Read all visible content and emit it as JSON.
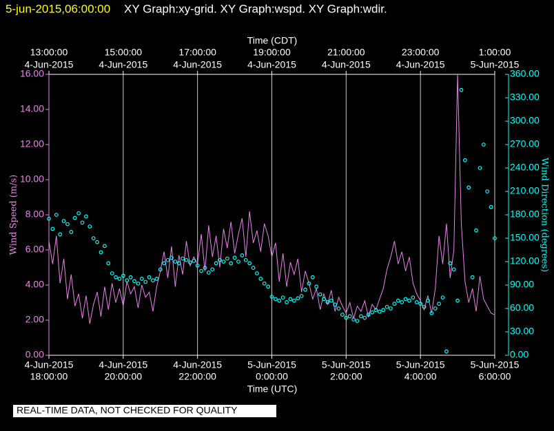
{
  "chart_data": {
    "type": "line-scatter",
    "timestamp": "5-jun-2015,06:00:00",
    "title": "XY Graph:xy-grid.  XY Graph:wspd.  XY Graph:wdir.",
    "x_label": "Time (UTC)",
    "x2_label": "Time (CDT)",
    "y_label": "Wind Speed (m/s)",
    "y2_label": "Wind Direction (degrees)",
    "note": "REAL-TIME DATA, NOT CHECKED FOR QUALITY",
    "grid": true,
    "xlim": [
      0,
      12
    ],
    "xticks": [
      {
        "value": 0,
        "label": "4-Jun-2015",
        "label2": "18:00:00"
      },
      {
        "value": 2,
        "label": "4-Jun-2015",
        "label2": "20:00:00"
      },
      {
        "value": 4,
        "label": "4-Jun-2015",
        "label2": "22:00:00"
      },
      {
        "value": 6,
        "label": "5-Jun-2015",
        "label2": "0:00:00"
      },
      {
        "value": 8,
        "label": "5-Jun-2015",
        "label2": "2:00:00"
      },
      {
        "value": 10,
        "label": "5-Jun-2015",
        "label2": "4:00:00"
      },
      {
        "value": 12,
        "label": "5-Jun-2015",
        "label2": "6:00:00"
      }
    ],
    "x2ticks": [
      {
        "value": 0,
        "label": "13:00:00",
        "label2": "4-Jun-2015"
      },
      {
        "value": 2,
        "label": "15:00:00",
        "label2": "4-Jun-2015"
      },
      {
        "value": 4,
        "label": "17:00:00",
        "label2": "4-Jun-2015"
      },
      {
        "value": 6,
        "label": "19:00:00",
        "label2": "4-Jun-2015"
      },
      {
        "value": 8,
        "label": "21:00:00",
        "label2": "4-Jun-2015"
      },
      {
        "value": 10,
        "label": "23:00:00",
        "label2": "4-Jun-2015"
      },
      {
        "value": 12,
        "label": "1:00:00",
        "label2": "5-Jun-2015"
      }
    ],
    "ylim": [
      0,
      16
    ],
    "yticks": [
      {
        "value": 0,
        "label": "0.00"
      },
      {
        "value": 2,
        "label": "2.00"
      },
      {
        "value": 4,
        "label": "4.00"
      },
      {
        "value": 6,
        "label": "6.00"
      },
      {
        "value": 8,
        "label": "8.00"
      },
      {
        "value": 10,
        "label": "10.00"
      },
      {
        "value": 12,
        "label": "12.00"
      },
      {
        "value": 14,
        "label": "14.00"
      },
      {
        "value": 16,
        "label": "16.00"
      }
    ],
    "y2lim": [
      0,
      360
    ],
    "y2ticks": [
      {
        "value": 0,
        "label": "0.00"
      },
      {
        "value": 30,
        "label": "30.00"
      },
      {
        "value": 60,
        "label": "60.00"
      },
      {
        "value": 90,
        "label": "90.00"
      },
      {
        "value": 120,
        "label": "120.00"
      },
      {
        "value": 150,
        "label": "150.00"
      },
      {
        "value": 180,
        "label": "180.00"
      },
      {
        "value": 210,
        "label": "210.00"
      },
      {
        "value": 240,
        "label": "240.00"
      },
      {
        "value": 270,
        "label": "270.00"
      },
      {
        "value": 300,
        "label": "300.00"
      },
      {
        "value": 330,
        "label": "330.00"
      },
      {
        "value": 360,
        "label": "360.00"
      }
    ],
    "x": [
      0,
      0.1,
      0.2,
      0.3,
      0.4,
      0.5,
      0.6,
      0.7,
      0.8,
      0.9,
      1,
      1.1,
      1.2,
      1.3,
      1.4,
      1.5,
      1.6,
      1.7,
      1.8,
      1.9,
      2,
      2.1,
      2.2,
      2.3,
      2.4,
      2.5,
      2.6,
      2.7,
      2.8,
      2.9,
      3,
      3.1,
      3.2,
      3.3,
      3.4,
      3.5,
      3.6,
      3.7,
      3.8,
      3.9,
      4,
      4.1,
      4.2,
      4.3,
      4.4,
      4.5,
      4.6,
      4.7,
      4.8,
      4.9,
      5,
      5.1,
      5.2,
      5.3,
      5.4,
      5.5,
      5.6,
      5.7,
      5.8,
      5.9,
      6,
      6.1,
      6.2,
      6.3,
      6.4,
      6.5,
      6.6,
      6.7,
      6.8,
      6.9,
      7,
      7.1,
      7.2,
      7.3,
      7.4,
      7.5,
      7.6,
      7.7,
      7.8,
      7.9,
      8,
      8.1,
      8.2,
      8.3,
      8.4,
      8.5,
      8.6,
      8.7,
      8.8,
      8.9,
      9,
      9.1,
      9.2,
      9.3,
      9.4,
      9.5,
      9.6,
      9.7,
      9.8,
      9.9,
      10,
      10.1,
      10.2,
      10.3,
      10.4,
      10.5,
      10.6,
      10.7,
      10.8,
      10.9,
      11,
      11.1,
      11.2,
      11.3,
      11.4,
      11.5,
      11.6,
      11.7,
      11.8,
      11.9,
      12
    ],
    "series": [
      {
        "name": "wspd",
        "kind": "line",
        "color": "#ee82ee",
        "values": [
          6.5,
          5.2,
          6.8,
          4.1,
          5.5,
          3.2,
          4.6,
          2.8,
          3.5,
          2.1,
          3.4,
          1.8,
          2.9,
          3.6,
          2.2,
          3.9,
          2.6,
          4.1,
          3.0,
          3.8,
          2.8,
          4.2,
          3.5,
          3.9,
          2.7,
          4.0,
          3.3,
          3.6,
          2.5,
          3.9,
          4.8,
          5.9,
          4.4,
          6.2,
          3.9,
          5.7,
          4.6,
          6.5,
          5.1,
          5.6,
          5.2,
          6.9,
          4.8,
          7.4,
          5.6,
          6.8,
          5.0,
          7.2,
          6.1,
          7.6,
          5.8,
          6.9,
          7.8,
          5.6,
          8.2,
          6.4,
          7.1,
          5.9,
          7.5,
          6.8,
          5.6,
          6.4,
          4.2,
          5.8,
          3.9,
          5.3,
          4.6,
          5.5,
          3.6,
          4.8,
          4.1,
          3.2,
          3.8,
          2.6,
          3.5,
          2.9,
          3.7,
          2.5,
          3.3,
          2.8,
          2.4,
          3.0,
          2.1,
          2.8,
          2.5,
          3.1,
          2.2,
          2.9,
          2.6,
          3.2,
          3.8,
          4.9,
          5.6,
          6.5,
          5.2,
          5.9,
          4.8,
          5.6,
          4.1,
          3.5,
          3.1,
          2.6,
          3.4,
          2.4,
          3.8,
          6.8,
          5.2,
          7.5,
          4.4,
          6.0,
          16.0,
          7.5,
          4.2,
          3.0,
          3.8,
          2.5,
          4.5,
          3.2,
          2.8,
          2.4,
          2.3
        ]
      },
      {
        "name": "wdir",
        "kind": "scatter",
        "axis": "y2",
        "color": "#00ffff",
        "values": [
          175,
          162,
          180,
          155,
          172,
          168,
          158,
          176,
          182,
          170,
          178,
          165,
          150,
          145,
          132,
          140,
          118,
          105,
          100,
          98,
          102,
          96,
          100,
          95,
          92,
          98,
          94,
          100,
          96,
          98,
          110,
          118,
          122,
          125,
          120,
          118,
          124,
          122,
          119,
          121,
          115,
          108,
          112,
          106,
          110,
          118,
          122,
          120,
          124,
          118,
          125,
          120,
          128,
          122,
          118,
          112,
          105,
          98,
          92,
          88,
          75,
          72,
          70,
          74,
          68,
          72,
          70,
          73,
          76,
          84,
          92,
          100,
          88,
          78,
          72,
          68,
          70,
          65,
          60,
          52,
          48,
          50,
          46,
          44,
          50,
          48,
          52,
          55,
          58,
          56,
          58,
          62,
          60,
          66,
          70,
          68,
          72,
          70,
          74,
          68,
          66,
          62,
          70,
          54,
          60,
          66,
          74,
          5,
          118,
          110,
          70,
          340,
          250,
          215,
          100,
          160,
          240,
          270,
          210,
          190,
          150
        ]
      }
    ]
  }
}
